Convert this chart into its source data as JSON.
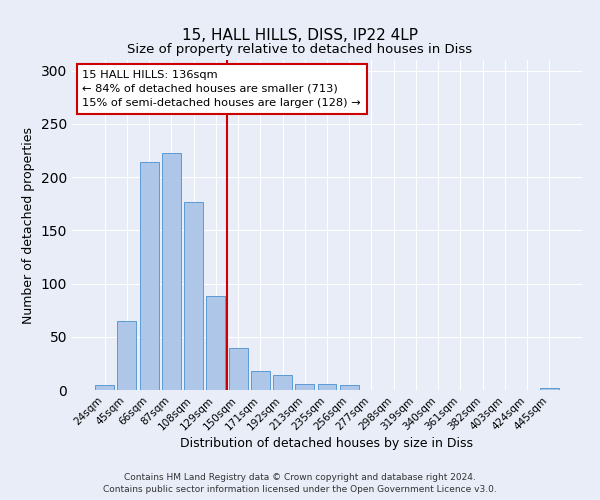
{
  "title1": "15, HALL HILLS, DISS, IP22 4LP",
  "title2": "Size of property relative to detached houses in Diss",
  "xlabel": "Distribution of detached houses by size in Diss",
  "ylabel": "Number of detached properties",
  "bar_labels": [
    "24sqm",
    "45sqm",
    "66sqm",
    "87sqm",
    "108sqm",
    "129sqm",
    "150sqm",
    "171sqm",
    "192sqm",
    "213sqm",
    "235sqm",
    "256sqm",
    "277sqm",
    "298sqm",
    "319sqm",
    "340sqm",
    "361sqm",
    "382sqm",
    "403sqm",
    "424sqm",
    "445sqm"
  ],
  "bar_values": [
    5,
    65,
    214,
    223,
    177,
    88,
    39,
    18,
    14,
    6,
    6,
    5,
    0,
    0,
    0,
    0,
    0,
    0,
    0,
    0,
    2
  ],
  "bar_color": "#aec6e8",
  "bar_edgecolor": "#5b9bd5",
  "vline_color": "#cc0000",
  "annotation_text": "15 HALL HILLS: 136sqm\n← 84% of detached houses are smaller (713)\n15% of semi-detached houses are larger (128) →",
  "annotation_box_edgecolor": "#cc0000",
  "ylim": [
    0,
    310
  ],
  "yticks": [
    0,
    50,
    100,
    150,
    200,
    250,
    300
  ],
  "footnote1": "Contains HM Land Registry data © Crown copyright and database right 2024.",
  "footnote2": "Contains public sector information licensed under the Open Government Licence v3.0.",
  "background_color": "#e8edf8",
  "plot_background": "#e8edf8"
}
